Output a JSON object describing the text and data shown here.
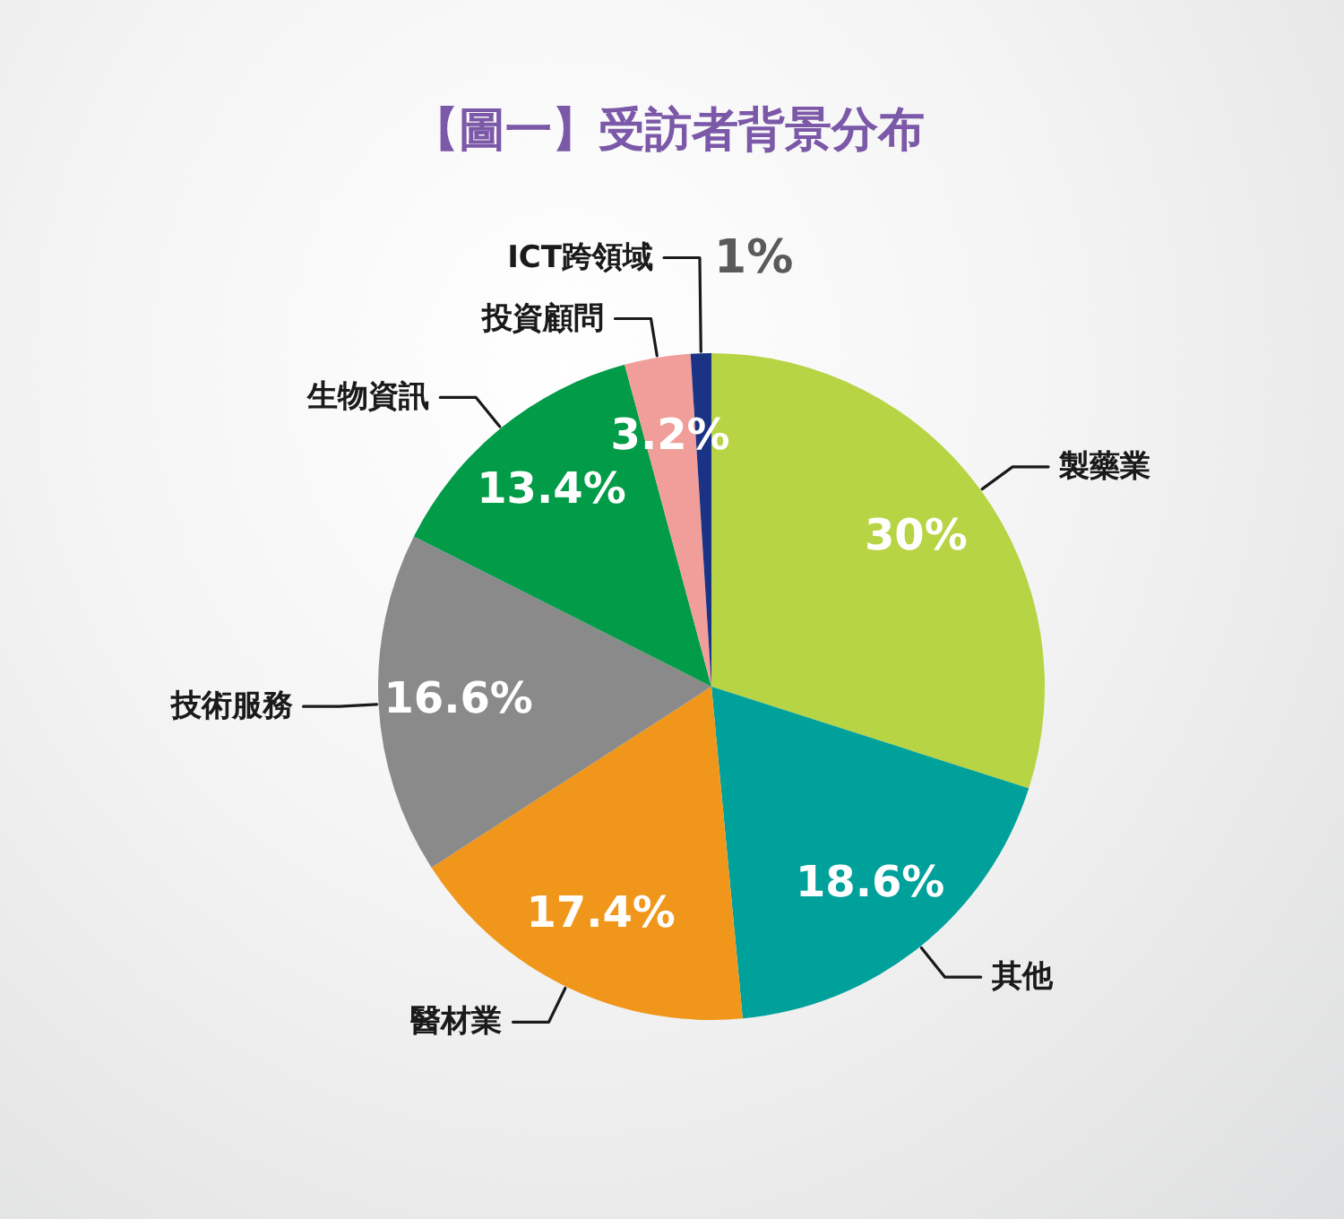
{
  "chart_data": {
    "type": "pie",
    "title": "【圖一】受訪者背景分布",
    "categories": [
      "製藥業",
      "其他",
      "醫材業",
      "技術服務",
      "生物資訊",
      "投資顧問",
      "ICT跨領域"
    ],
    "values": [
      30,
      18.6,
      17.4,
      16.6,
      13.4,
      3.2,
      1
    ],
    "colors": [
      "#b6d443",
      "#00a19b",
      "#f0961b",
      "#8a8a8a",
      "#029b48",
      "#f19e9a",
      "#1b3384"
    ],
    "value_labels": [
      "30%",
      "18.6%",
      "17.4%",
      "16.6%",
      "13.4%",
      "3.2%",
      "1%"
    ]
  }
}
